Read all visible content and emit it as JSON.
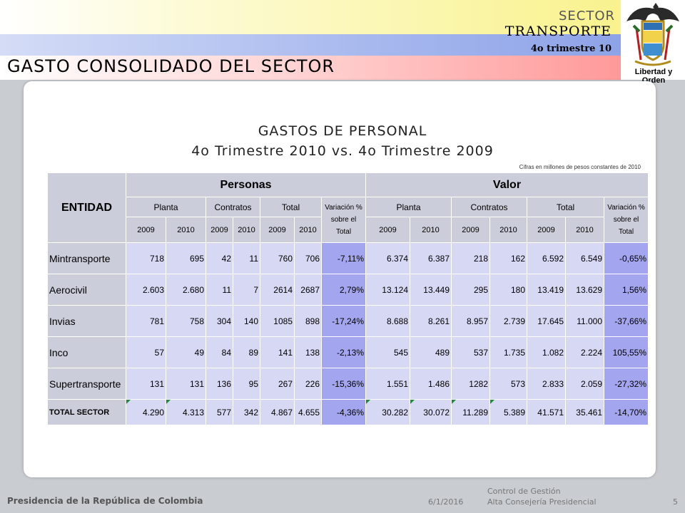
{
  "header": {
    "sector": "SECTOR",
    "transporte": "TRANSPORTE",
    "trimestre": "4o trimestre 10",
    "title": "GASTO CONSOLIDADO DEL SECTOR",
    "motto": "Libertad y Orden"
  },
  "content": {
    "title1": "GASTOS DE PERSONAL",
    "title2": "4o Trimestre 2010 vs.  4o Trimestre 2009",
    "note": "Cifras en millones de pesos constantes de 2010"
  },
  "table": {
    "entidad": "ENTIDAD",
    "personas": "Personas",
    "valor": "Valor",
    "planta": "Planta",
    "contratos": "Contratos",
    "total": "Total",
    "variacion_personas": [
      "Variación %",
      "sobre el Total"
    ],
    "variacion_valor": [
      "Variación %",
      "sobre el",
      "Total"
    ],
    "y2009": "2009",
    "y2010": "2010",
    "rows": [
      {
        "name": "Mintransporte",
        "cells": [
          "718",
          "695",
          "42",
          "11",
          "760",
          "706",
          "-7,11%",
          "6.374",
          "6.387",
          "218",
          "162",
          "6.592",
          "6.549",
          "-0,65%"
        ]
      },
      {
        "name": "Aerocivil",
        "cells": [
          "2.603",
          "2.680",
          "11",
          "7",
          "2614",
          "2687",
          "2,79%",
          "13.124",
          "13.449",
          "295",
          "180",
          "13.419",
          "13.629",
          "1,56%"
        ]
      },
      {
        "name": "Invias",
        "cells": [
          "781",
          "758",
          "304",
          "140",
          "1085",
          "898",
          "-17,24%",
          "8.688",
          "8.261",
          "8.957",
          "2.739",
          "17.645",
          "11.000",
          "-37,66%"
        ]
      },
      {
        "name": "Inco",
        "cells": [
          "57",
          "49",
          "84",
          "89",
          "141",
          "138",
          "-2,13%",
          "545",
          "489",
          "537",
          "1.735",
          "1.082",
          "2.224",
          "105,55%"
        ]
      },
      {
        "name": "Supertransporte",
        "cells": [
          "131",
          "131",
          "136",
          "95",
          "267",
          "226",
          "-15,36%",
          "1.551",
          "1.486",
          "1282",
          "573",
          "2.833",
          "2.059",
          "-27,32%"
        ]
      }
    ],
    "total_row": {
      "name": "TOTAL SECTOR",
      "cells": [
        "4.290",
        "4.313",
        "577",
        "342",
        "4.867",
        "4.655",
        "-4,36%",
        "30.282",
        "30.072",
        "11.289",
        "5.389",
        "41.571",
        "35.461",
        "-14,70%"
      ]
    }
  },
  "footer": {
    "left": "Presidencia de la República de Colombia",
    "date": "6/1/2016",
    "control1": "Control de Gestión",
    "control2": "Alta Consejería Presidencial",
    "page": "5"
  },
  "colors": {
    "header_cell": "#cbcdda",
    "value_cell": "#d7d8f4",
    "variation_cell": "#a4a5ef",
    "marker": "#1f8a3a"
  },
  "icons": {
    "logo": "colombia-coat-of-arms-icon"
  }
}
